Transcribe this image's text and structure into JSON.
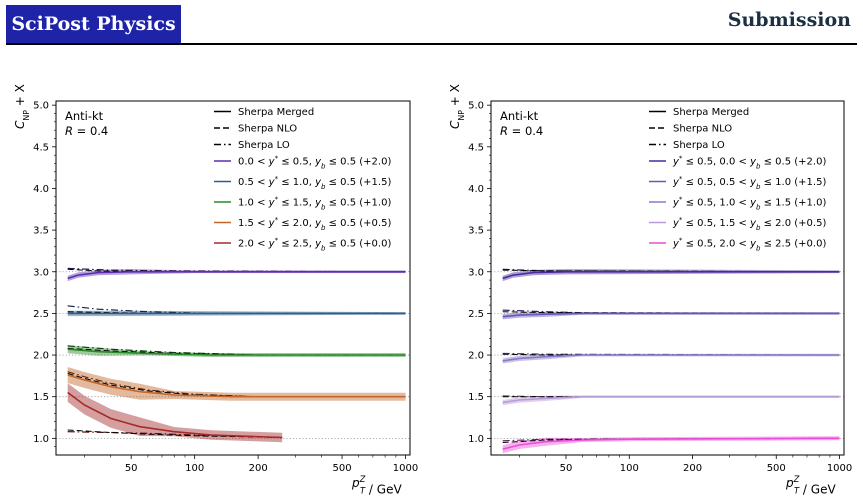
{
  "header": {
    "brand": "SciPost Physics",
    "section": "Submission"
  },
  "chart_data": [
    {
      "type": "line",
      "annotation": [
        "Anti-kt",
        "R = 0.4"
      ],
      "ylabel": "C_NP + X",
      "xlabel": "p_T^Z / GeV",
      "xscale": "log",
      "xlim": [
        22,
        1050
      ],
      "ylim": [
        0.8,
        5.05
      ],
      "xticks": [
        50,
        100,
        200,
        500,
        1000
      ],
      "yticks": [
        1.0,
        1.5,
        2.0,
        2.5,
        3.0,
        3.5,
        4.0,
        4.5,
        5.0
      ],
      "grid": "dotted reference lines at offsets",
      "legend_placement": "top-right",
      "style_legend": [
        {
          "label": "Sherpa Merged",
          "dash": "solid"
        },
        {
          "label": "Sherpa NLO",
          "dash": "dashed"
        },
        {
          "label": "Sherpa LO",
          "dash": "dashdot"
        }
      ],
      "series": [
        {
          "name": "0.0 < y* ≤ 0.5, y_b ≤ 0.5 (+2.0)",
          "offset": 2.0,
          "color": "#5b2eb0",
          "merged": [
            [
              25,
              2.92
            ],
            [
              28,
              2.96
            ],
            [
              35,
              2.99
            ],
            [
              50,
              3.0
            ],
            [
              100,
              3.0
            ],
            [
              1000,
              3.0
            ]
          ],
          "nlo": [
            [
              25,
              3.03
            ],
            [
              35,
              3.01
            ],
            [
              60,
              3.0
            ],
            [
              1000,
              3.0
            ]
          ],
          "lo": [
            [
              25,
              3.04
            ],
            [
              40,
              3.02
            ],
            [
              80,
              3.01
            ],
            [
              1000,
              3.0
            ]
          ],
          "band": 0.02
        },
        {
          "name": "0.5 < y* ≤ 1.0, y_b ≤ 0.5 (+1.5)",
          "offset": 1.5,
          "color": "#2f5e8e",
          "merged": [
            [
              25,
              2.5
            ],
            [
              40,
              2.5
            ],
            [
              1000,
              2.5
            ]
          ],
          "nlo": [
            [
              25,
              2.52
            ],
            [
              40,
              2.51
            ],
            [
              80,
              2.5
            ],
            [
              1000,
              2.5
            ]
          ],
          "lo": [
            [
              25,
              2.59
            ],
            [
              35,
              2.55
            ],
            [
              60,
              2.52
            ],
            [
              120,
              2.5
            ],
            [
              1000,
              2.5
            ]
          ],
          "band": 0.02
        },
        {
          "name": "1.0 < y* ≤ 1.5, y_b ≤ 0.5 (+1.0)",
          "offset": 1.0,
          "color": "#2a8a2a",
          "merged": [
            [
              25,
              2.07
            ],
            [
              35,
              2.04
            ],
            [
              60,
              2.02
            ],
            [
              120,
              2.0
            ],
            [
              1000,
              2.0
            ]
          ],
          "nlo": [
            [
              25,
              2.08
            ],
            [
              40,
              2.05
            ],
            [
              80,
              2.02
            ],
            [
              200,
              2.0
            ],
            [
              1000,
              2.0
            ]
          ],
          "lo": [
            [
              25,
              2.11
            ],
            [
              40,
              2.07
            ],
            [
              80,
              2.03
            ],
            [
              200,
              2.0
            ],
            [
              1000,
              2.0
            ]
          ],
          "band": 0.03
        },
        {
          "name": "1.5 < y* ≤ 2.0, y_b ≤ 0.5 (+0.5)",
          "offset": 0.5,
          "color": "#c4672a",
          "merged": [
            [
              25,
              1.76
            ],
            [
              30,
              1.7
            ],
            [
              40,
              1.62
            ],
            [
              55,
              1.56
            ],
            [
              80,
              1.52
            ],
            [
              150,
              1.5
            ],
            [
              1000,
              1.5
            ]
          ],
          "nlo": [
            [
              25,
              1.78
            ],
            [
              30,
              1.72
            ],
            [
              40,
              1.64
            ],
            [
              60,
              1.57
            ],
            [
              100,
              1.52
            ],
            [
              200,
              1.5
            ],
            [
              1000,
              1.5
            ]
          ],
          "lo": [
            [
              25,
              1.8
            ],
            [
              30,
              1.74
            ],
            [
              40,
              1.66
            ],
            [
              60,
              1.58
            ],
            [
              100,
              1.53
            ],
            [
              200,
              1.5
            ],
            [
              1000,
              1.5
            ]
          ],
          "band": 0.06
        },
        {
          "name": "2.0 < y* ≤ 2.5, y_b ≤ 0.5 (+0.0)",
          "offset": 0.0,
          "color": "#a52a2a",
          "merged": [
            [
              25,
              1.55
            ],
            [
              30,
              1.4
            ],
            [
              40,
              1.24
            ],
            [
              55,
              1.14
            ],
            [
              80,
              1.08
            ],
            [
              120,
              1.04
            ],
            [
              260,
              1.01
            ]
          ],
          "nlo": [
            [
              25,
              1.1
            ],
            [
              40,
              1.07
            ],
            [
              60,
              1.05
            ],
            [
              100,
              1.03
            ],
            [
              260,
              1.01
            ]
          ],
          "lo": [
            [
              25,
              1.08
            ],
            [
              40,
              1.07
            ],
            [
              60,
              1.06
            ],
            [
              100,
              1.04
            ],
            [
              260,
              1.01
            ]
          ],
          "band": 0.07
        }
      ]
    },
    {
      "type": "line",
      "annotation": [
        "Anti-kt",
        "R = 0.4"
      ],
      "ylabel": "C_NP + X",
      "xlabel": "p_T^Z / GeV",
      "xscale": "log",
      "xlim": [
        22,
        1050
      ],
      "ylim": [
        0.8,
        5.05
      ],
      "xticks": [
        50,
        100,
        200,
        500,
        1000
      ],
      "yticks": [
        1.0,
        1.5,
        2.0,
        2.5,
        3.0,
        3.5,
        4.0,
        4.5,
        5.0
      ],
      "grid": "dotted reference lines at offsets",
      "legend_placement": "top-right",
      "style_legend": [
        {
          "label": "Sherpa Merged",
          "dash": "solid"
        },
        {
          "label": "Sherpa NLO",
          "dash": "dashed"
        },
        {
          "label": "Sherpa LO",
          "dash": "dashdot"
        }
      ],
      "series": [
        {
          "name": "y* ≤ 0.5, 0.0 < y_b ≤ 0.5 (+2.0)",
          "offset": 2.0,
          "color": "#4b2a9e",
          "merged": [
            [
              25,
              2.92
            ],
            [
              28,
              2.96
            ],
            [
              35,
              2.99
            ],
            [
              50,
              3.0
            ],
            [
              1000,
              3.0
            ]
          ],
          "nlo": [
            [
              25,
              3.02
            ],
            [
              40,
              3.01
            ],
            [
              1000,
              3.0
            ]
          ],
          "lo": [
            [
              25,
              3.03
            ],
            [
              40,
              3.01
            ],
            [
              1000,
              3.0
            ]
          ],
          "band": 0.02
        },
        {
          "name": "y* ≤ 0.5, 0.5 < y_b ≤ 1.0 (+1.5)",
          "offset": 1.5,
          "color": "#6a55b8",
          "merged": [
            [
              25,
              2.46
            ],
            [
              30,
              2.48
            ],
            [
              40,
              2.49
            ],
            [
              60,
              2.5
            ],
            [
              1000,
              2.5
            ]
          ],
          "nlo": [
            [
              25,
              2.52
            ],
            [
              40,
              2.51
            ],
            [
              1000,
              2.5
            ]
          ],
          "lo": [
            [
              25,
              2.54
            ],
            [
              40,
              2.52
            ],
            [
              80,
              2.5
            ],
            [
              1000,
              2.5
            ]
          ],
          "band": 0.02
        },
        {
          "name": "y* ≤ 0.5, 1.0 < y_b ≤ 1.5 (+1.0)",
          "offset": 1.0,
          "color": "#8a78c8",
          "merged": [
            [
              25,
              1.93
            ],
            [
              30,
              1.96
            ],
            [
              40,
              1.98
            ],
            [
              60,
              2.0
            ],
            [
              1000,
              2.0
            ]
          ],
          "nlo": [
            [
              25,
              2.01
            ],
            [
              40,
              2.0
            ],
            [
              1000,
              2.0
            ]
          ],
          "lo": [
            [
              25,
              2.02
            ],
            [
              40,
              2.01
            ],
            [
              1000,
              2.0
            ]
          ],
          "band": 0.02
        },
        {
          "name": "y* ≤ 0.5, 1.5 < y_b ≤ 2.0 (+0.5)",
          "offset": 0.5,
          "color": "#b79ad8",
          "merged": [
            [
              25,
              1.43
            ],
            [
              30,
              1.46
            ],
            [
              40,
              1.48
            ],
            [
              60,
              1.5
            ],
            [
              1000,
              1.5
            ]
          ],
          "nlo": [
            [
              25,
              1.5
            ],
            [
              1000,
              1.5
            ]
          ],
          "lo": [
            [
              25,
              1.51
            ],
            [
              40,
              1.5
            ],
            [
              1000,
              1.5
            ]
          ],
          "band": 0.02
        },
        {
          "name": "y* ≤ 0.5, 2.0 < y_b ≤ 2.5 (+0.0)",
          "offset": 0.0,
          "color": "#e84fd6",
          "merged": [
            [
              25,
              0.87
            ],
            [
              30,
              0.92
            ],
            [
              40,
              0.96
            ],
            [
              60,
              0.98
            ],
            [
              100,
              0.99
            ],
            [
              1000,
              1.0
            ]
          ],
          "nlo": [
            [
              25,
              0.95
            ],
            [
              40,
              0.98
            ],
            [
              80,
              0.99
            ],
            [
              1000,
              1.0
            ]
          ],
          "lo": [
            [
              25,
              0.97
            ],
            [
              40,
              0.99
            ],
            [
              1000,
              1.0
            ]
          ],
          "band": 0.03
        }
      ]
    }
  ]
}
